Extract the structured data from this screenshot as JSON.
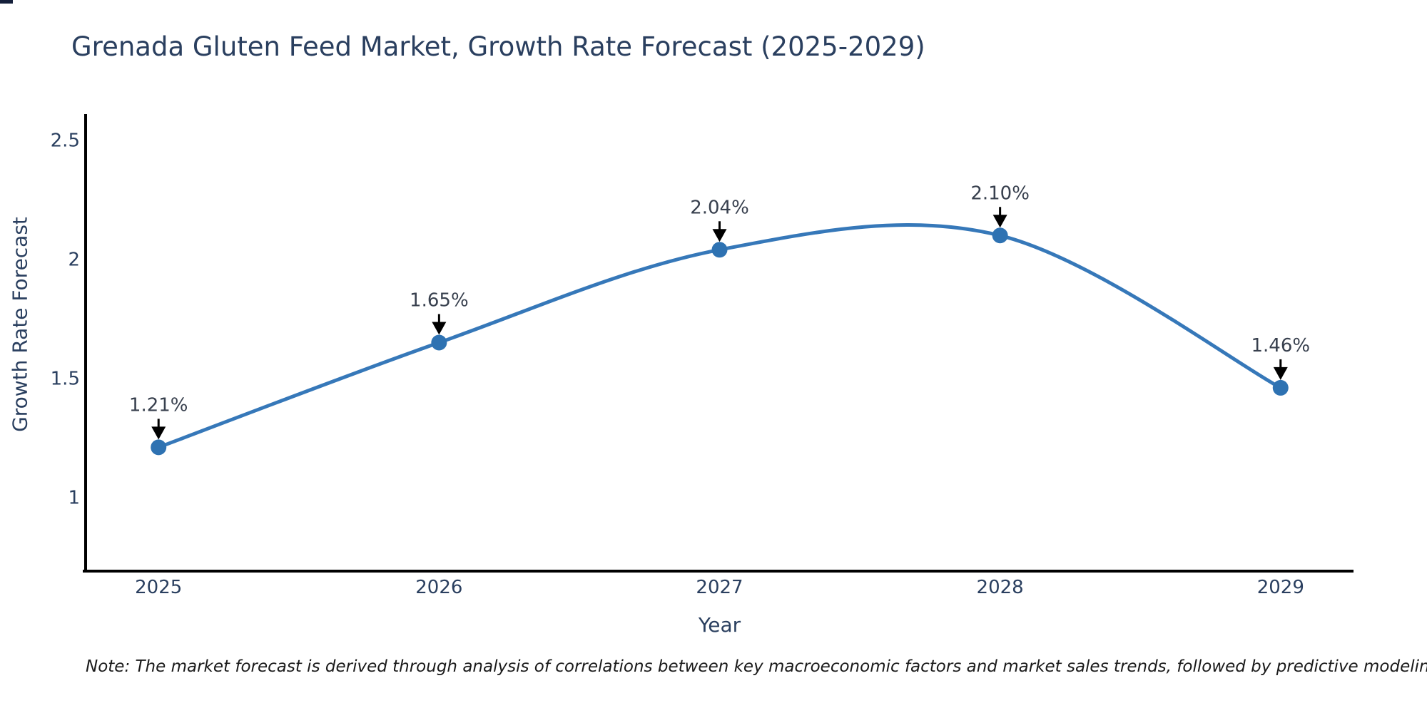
{
  "note": "Note: The market forecast is derived through analysis of correlations between key macroeconomic factors and market sales trends, followed by predictive modeling to project future sales",
  "chart_data": {
    "type": "line",
    "title": "Grenada Gluten Feed Market, Growth Rate Forecast (2025-2029)",
    "xlabel": "Year",
    "ylabel": "Growth Rate Forecast",
    "x": [
      2025,
      2026,
      2027,
      2028,
      2029
    ],
    "values": [
      1.21,
      1.65,
      2.04,
      2.1,
      1.46
    ],
    "point_labels": [
      "1.21%",
      "1.65%",
      "2.04%",
      "2.10%",
      "1.46%"
    ],
    "x_tick_labels": [
      "2025",
      "2026",
      "2027",
      "2028",
      "2029"
    ],
    "y_ticks": [
      {
        "value": 1,
        "label": "1"
      },
      {
        "value": 1.5,
        "label": "1.5"
      },
      {
        "value": 2,
        "label": "2"
      },
      {
        "value": 2.5,
        "label": "2.5"
      }
    ],
    "xlim": [
      2024.74,
      2029.26
    ],
    "ylim": [
      0.69,
      2.61
    ],
    "line_shape": "spline",
    "markers": true,
    "grid": false,
    "legend": "none",
    "annotations": "value labels with down arrows above each point",
    "colors": {
      "line": "#3678b9",
      "marker": "#2e72b2",
      "axis": "#000000",
      "tick_text": "#2a3f5f",
      "title_text": "#2a3f5f",
      "axis_title_text": "#2a3f5f",
      "point_label_text": "#38404e",
      "arrow": "#000000",
      "note_text": "#1a1a1a",
      "background": "#ffffff"
    }
  }
}
